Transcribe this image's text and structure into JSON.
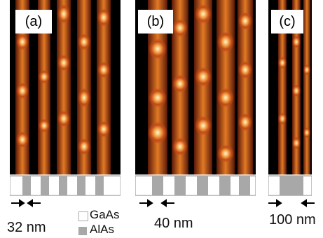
{
  "panels": [
    {
      "label": "(a)",
      "scale_text": "32 nm"
    },
    {
      "label": "(b)",
      "scale_text": "40 nm"
    },
    {
      "label": "(c)",
      "scale_text": "100 nm"
    }
  ],
  "legend": {
    "items": [
      {
        "text": "GaAs",
        "color": "#ffffff"
      },
      {
        "text": "AlAs",
        "color": "#a8a8a8"
      }
    ]
  },
  "colors": {
    "background": "#000000",
    "mid": "#8a2a10",
    "hot": "#e0701c",
    "peak": "#fff4c8"
  }
}
